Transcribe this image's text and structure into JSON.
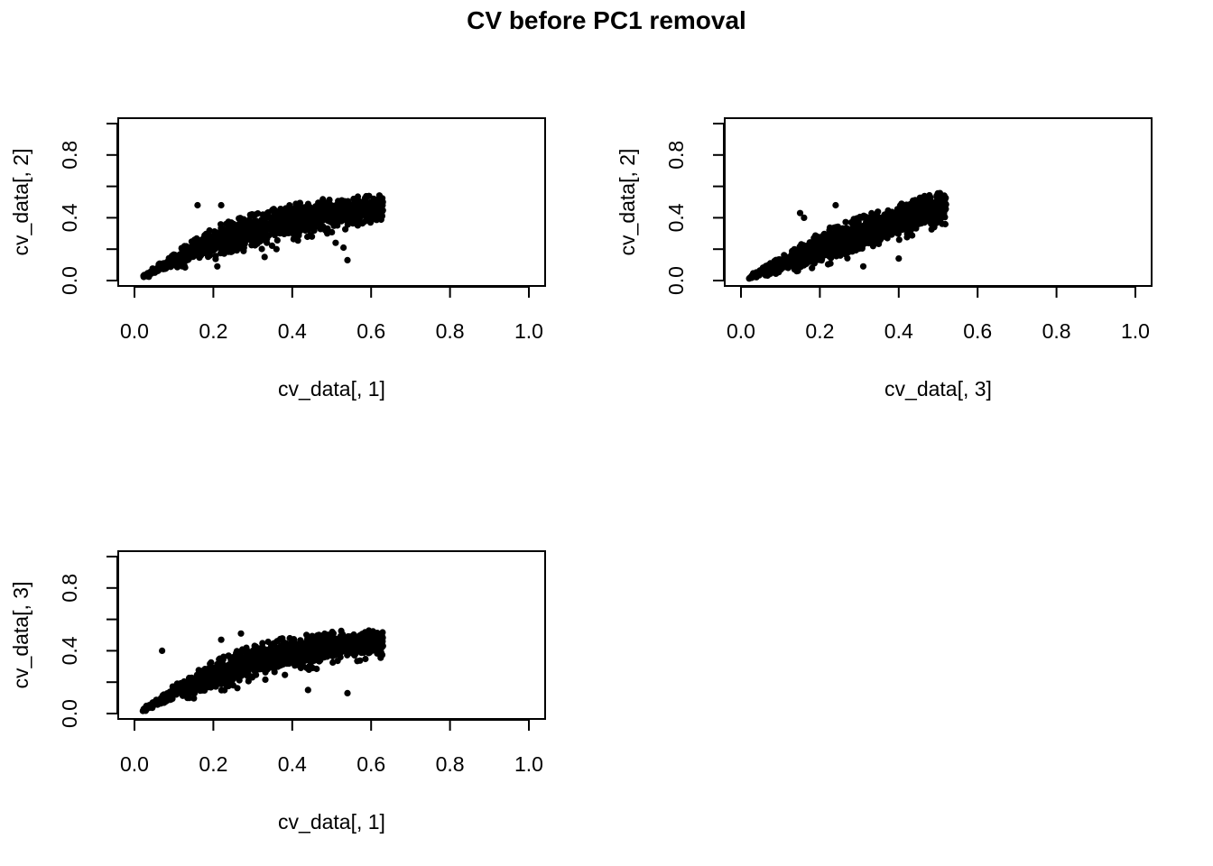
{
  "title": "CV before PC1 removal",
  "chart_data": [
    {
      "type": "scatter",
      "xlabel": "cv_data[, 1]",
      "ylabel": "cv_data[, 2]",
      "xlim": [
        0,
        1
      ],
      "ylim": [
        0,
        1
      ],
      "xticks": [
        "0.0",
        "0.2",
        "0.4",
        "0.6",
        "0.8",
        "1.0"
      ],
      "yticks": [
        "0.0",
        "0.4",
        "0.8"
      ],
      "trend": [
        [
          0.02,
          0.02
        ],
        [
          0.1,
          0.13
        ],
        [
          0.2,
          0.24
        ],
        [
          0.3,
          0.32
        ],
        [
          0.4,
          0.38
        ],
        [
          0.5,
          0.43
        ],
        [
          0.6,
          0.46
        ],
        [
          0.63,
          0.47
        ]
      ],
      "outliers": [
        [
          0.16,
          0.48
        ],
        [
          0.22,
          0.48
        ],
        [
          0.21,
          0.09
        ],
        [
          0.33,
          0.15
        ],
        [
          0.45,
          0.28
        ],
        [
          0.51,
          0.24
        ],
        [
          0.53,
          0.21
        ],
        [
          0.54,
          0.13
        ],
        [
          0.36,
          0.2
        ]
      ]
    },
    {
      "type": "scatter",
      "xlabel": "cv_data[, 3]",
      "ylabel": "cv_data[, 2]",
      "xlim": [
        0,
        1
      ],
      "ylim": [
        0,
        1
      ],
      "xticks": [
        "0.0",
        "0.2",
        "0.4",
        "0.6",
        "0.8",
        "1.0"
      ],
      "yticks": [
        "0.0",
        "0.4",
        "0.8"
      ],
      "trend": [
        [
          0.02,
          0.02
        ],
        [
          0.1,
          0.1
        ],
        [
          0.2,
          0.21
        ],
        [
          0.3,
          0.3
        ],
        [
          0.4,
          0.38
        ],
        [
          0.48,
          0.45
        ],
        [
          0.52,
          0.47
        ]
      ],
      "outliers": [
        [
          0.15,
          0.43
        ],
        [
          0.16,
          0.4
        ],
        [
          0.24,
          0.48
        ],
        [
          0.31,
          0.09
        ],
        [
          0.4,
          0.14
        ],
        [
          0.49,
          0.34
        ],
        [
          0.27,
          0.22
        ]
      ]
    },
    {
      "type": "scatter",
      "xlabel": "cv_data[, 1]",
      "ylabel": "cv_data[, 3]",
      "xlim": [
        0,
        1
      ],
      "ylim": [
        0,
        1
      ],
      "xticks": [
        "0.0",
        "0.2",
        "0.4",
        "0.6",
        "0.8",
        "1.0"
      ],
      "yticks": [
        "0.0",
        "0.4",
        "0.8"
      ],
      "trend": [
        [
          0.02,
          0.02
        ],
        [
          0.1,
          0.13
        ],
        [
          0.2,
          0.24
        ],
        [
          0.3,
          0.33
        ],
        [
          0.4,
          0.39
        ],
        [
          0.5,
          0.43
        ],
        [
          0.6,
          0.45
        ],
        [
          0.63,
          0.45
        ]
      ],
      "outliers": [
        [
          0.07,
          0.4
        ],
        [
          0.27,
          0.51
        ],
        [
          0.22,
          0.47
        ],
        [
          0.44,
          0.15
        ],
        [
          0.54,
          0.13
        ],
        [
          0.63,
          0.43
        ],
        [
          0.25,
          0.18
        ]
      ]
    }
  ]
}
